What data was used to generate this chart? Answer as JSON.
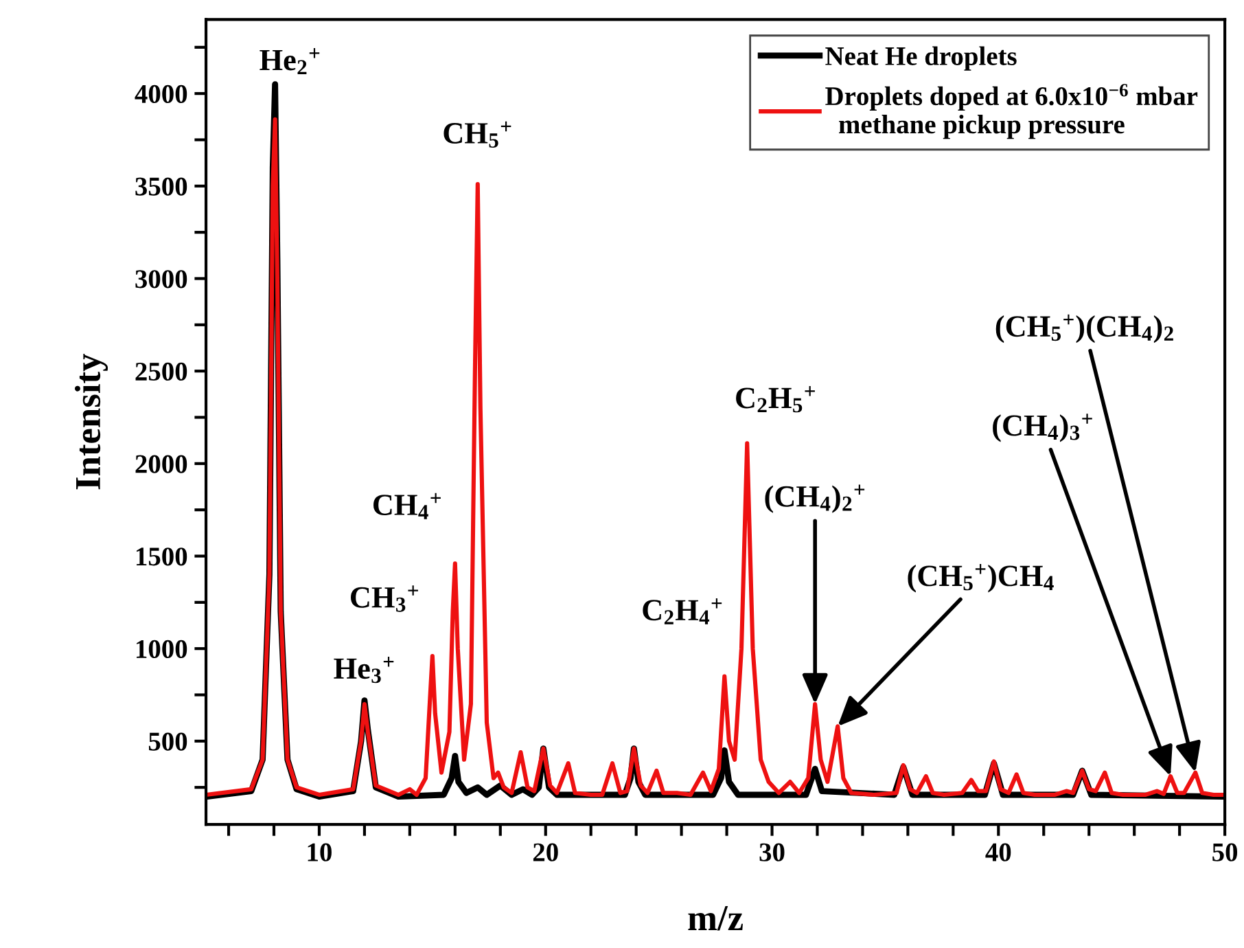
{
  "chart_data": {
    "type": "line",
    "xlabel": "m/z",
    "ylabel": "Intensity",
    "xlim": [
      5,
      50
    ],
    "ylim": [
      50,
      4400
    ],
    "xticks": [
      {
        "value": 6,
        "label": null
      },
      {
        "value": 8,
        "label": null
      },
      10,
      {
        "value": 12,
        "label": null
      },
      {
        "value": 14,
        "label": null
      },
      {
        "value": 16,
        "label": null
      },
      {
        "value": 18,
        "label": null
      },
      20,
      {
        "value": 22,
        "label": null
      },
      {
        "value": 24,
        "label": null
      },
      {
        "value": 26,
        "label": null
      },
      {
        "value": 28,
        "label": null
      },
      30,
      {
        "value": 32,
        "label": null
      },
      {
        "value": 34,
        "label": null
      },
      {
        "value": 36,
        "label": null
      },
      {
        "value": 38,
        "label": null
      },
      40,
      {
        "value": 42,
        "label": null
      },
      {
        "value": 44,
        "label": null
      },
      {
        "value": 46,
        "label": null
      },
      {
        "value": 48,
        "label": null
      },
      50
    ],
    "yticks": [
      {
        "value": 250,
        "label": null
      },
      500,
      {
        "value": 750,
        "label": null
      },
      1000,
      {
        "value": 1250,
        "label": null
      },
      1500,
      {
        "value": 1750,
        "label": null
      },
      2000,
      {
        "value": 2250,
        "label": null
      },
      2500,
      {
        "value": 2750,
        "label": null
      },
      3000,
      {
        "value": 3250,
        "label": null
      },
      3500,
      {
        "value": 3750,
        "label": null
      },
      4000,
      {
        "value": 4250,
        "label": null
      }
    ],
    "grid": false,
    "legend": "top right",
    "line_style": "solid",
    "series": [
      {
        "name": "Neat He droplets",
        "color": "#000000",
        "x": [
          5,
          7.0,
          7.5,
          7.8,
          7.95,
          8.05,
          8.15,
          8.3,
          8.6,
          9.0,
          10.0,
          11.5,
          11.85,
          12.0,
          12.15,
          12.5,
          13.5,
          15.5,
          15.85,
          16.0,
          16.15,
          16.5,
          17.0,
          17.4,
          18.0,
          18.5,
          19.0,
          19.4,
          19.7,
          19.9,
          20.15,
          20.5,
          23.5,
          23.75,
          23.9,
          24.1,
          24.4,
          27.4,
          27.75,
          27.9,
          28.1,
          28.5,
          31.5,
          31.9,
          32.2,
          35.4,
          35.8,
          36.2,
          39.4,
          39.8,
          40.2,
          43.3,
          43.7,
          44.1,
          50
        ],
        "values": [
          200,
          230,
          400,
          1400,
          3600,
          4050,
          3100,
          1200,
          400,
          240,
          200,
          230,
          500,
          720,
          560,
          250,
          200,
          210,
          300,
          420,
          280,
          220,
          250,
          210,
          260,
          210,
          240,
          210,
          250,
          460,
          250,
          210,
          210,
          300,
          460,
          280,
          210,
          210,
          300,
          450,
          280,
          210,
          210,
          350,
          230,
          210,
          360,
          210,
          210,
          380,
          210,
          210,
          340,
          210,
          200
        ]
      },
      {
        "name": "Droplets doped at 6.0x10$^{−6}$ mbar\n  methane pickup pressure",
        "color": "#ee1111",
        "x": [
          5,
          7.0,
          7.5,
          7.8,
          7.95,
          8.05,
          8.15,
          8.3,
          8.6,
          9.0,
          10.0,
          11.5,
          11.85,
          12.0,
          12.15,
          12.5,
          13.5,
          14.0,
          14.3,
          14.7,
          14.88,
          15.0,
          15.12,
          15.4,
          15.75,
          15.9,
          16.0,
          16.12,
          16.4,
          16.7,
          16.88,
          17.0,
          17.12,
          17.4,
          17.7,
          17.9,
          18.15,
          18.5,
          18.9,
          19.2,
          19.5,
          19.9,
          20.2,
          20.5,
          21.0,
          21.3,
          22.0,
          22.5,
          22.95,
          23.3,
          23.6,
          23.9,
          24.2,
          24.5,
          24.9,
          25.2,
          25.8,
          26.4,
          26.95,
          27.3,
          27.65,
          27.9,
          28.1,
          28.35,
          28.65,
          28.9,
          29.15,
          29.5,
          29.85,
          30.3,
          30.8,
          31.2,
          31.6,
          31.9,
          32.15,
          32.45,
          32.9,
          33.15,
          33.5,
          34.5,
          35.5,
          35.8,
          36.1,
          36.4,
          36.8,
          37.1,
          37.6,
          38.4,
          38.8,
          39.1,
          39.45,
          39.8,
          40.1,
          40.45,
          40.8,
          41.1,
          41.6,
          42.5,
          43.0,
          43.3,
          43.7,
          44.0,
          44.3,
          44.7,
          45.0,
          45.5,
          46.5,
          47.0,
          47.3,
          47.6,
          47.9,
          48.2,
          48.7,
          49.0,
          49.5,
          50
        ],
        "values": [
          210,
          240,
          400,
          1400,
          3500,
          3860,
          3000,
          1200,
          400,
          250,
          210,
          240,
          500,
          700,
          550,
          260,
          210,
          240,
          210,
          300,
          700,
          960,
          650,
          330,
          550,
          1200,
          1460,
          1000,
          400,
          700,
          2500,
          3510,
          2300,
          600,
          300,
          330,
          250,
          220,
          440,
          250,
          230,
          460,
          260,
          220,
          380,
          220,
          210,
          210,
          380,
          220,
          230,
          460,
          260,
          220,
          340,
          220,
          220,
          210,
          330,
          230,
          350,
          850,
          500,
          400,
          1000,
          2110,
          1000,
          400,
          280,
          220,
          280,
          220,
          300,
          700,
          400,
          280,
          580,
          300,
          220,
          210,
          220,
          370,
          240,
          220,
          310,
          220,
          210,
          220,
          290,
          230,
          230,
          390,
          240,
          220,
          320,
          220,
          210,
          210,
          230,
          220,
          340,
          240,
          230,
          330,
          220,
          210,
          210,
          230,
          215,
          310,
          220,
          220,
          330,
          220,
          210,
          210
        ]
      }
    ],
    "annotations": [
      {
        "text": "He$_{2}$$^{+}$",
        "x": 8.05,
        "y": 4050
      },
      {
        "text": "CH$_{5}$$^{+}$",
        "x": 17.0,
        "y": 3510
      },
      {
        "text": "CH$_{4}$$^{+}$",
        "x": 16.0,
        "y": 1460
      },
      {
        "text": "CH$_{3}$$^{+}$",
        "x": 15.0,
        "y": 960
      },
      {
        "text": "He$_{3}$$^{+}$",
        "x": 12.0,
        "y": 720
      },
      {
        "text": "C$_{2}$H$_{4}$$^{+}$",
        "x": 27.9,
        "y": 850
      },
      {
        "text": "C$_{2}$H$_{5}$$^{+}$",
        "x": 28.9,
        "y": 2110
      },
      {
        "text": "(CH$_{4}$)$_{2}$$^{+}$",
        "x": 31.9,
        "y": 700
      },
      {
        "text": "(CH$_{5}$$^{+}$)CH$_{4}$",
        "x": 32.9,
        "y": 580
      },
      {
        "text": "(CH$_{4}$)$_{3}$$^{+}$",
        "x": 47.6,
        "y": 310
      },
      {
        "text": "(CH$_{5}$$^{+}$)(CH$_{4}$)$_{2}$",
        "x": 48.7,
        "y": 330
      }
    ]
  }
}
